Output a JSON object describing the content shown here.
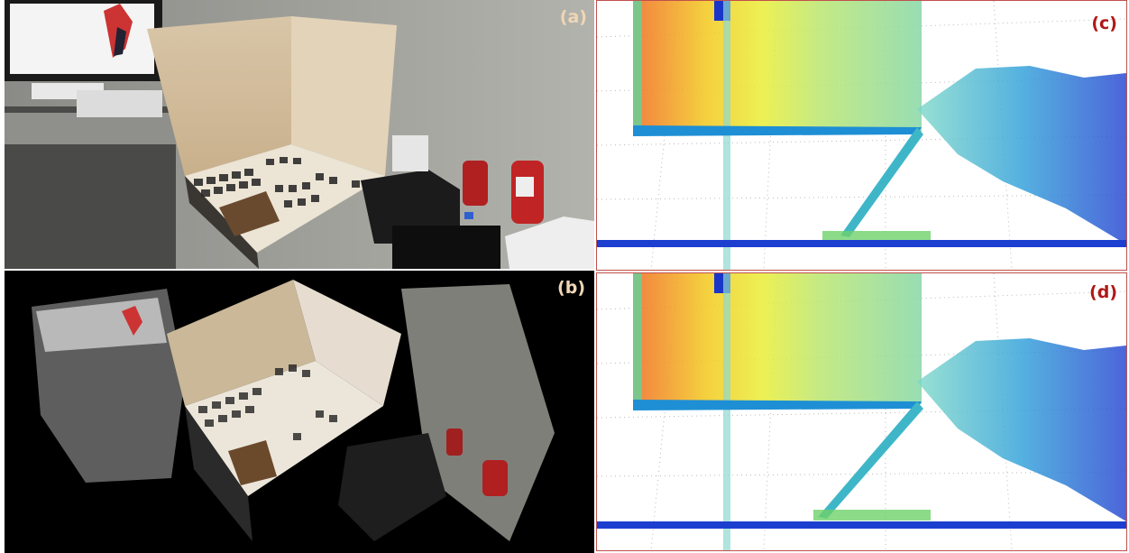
{
  "panels": [
    {
      "id": "a",
      "label": "(a)"
    },
    {
      "id": "b",
      "label": "(b)"
    },
    {
      "id": "c",
      "label": "(c)"
    },
    {
      "id": "d",
      "label": "(d)"
    }
  ],
  "colors": {
    "panel_border": "#c0504d",
    "label_light": "#f0d6b4",
    "label_red": "#b01818"
  }
}
